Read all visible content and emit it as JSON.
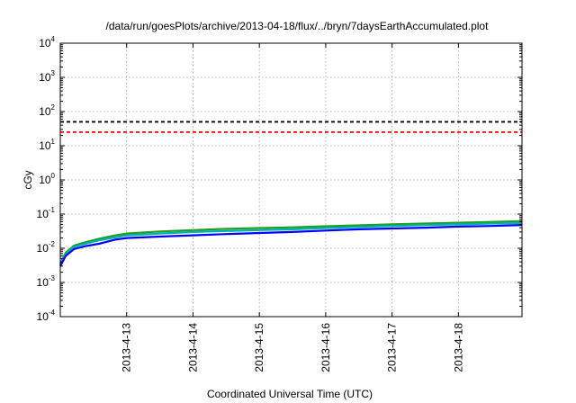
{
  "chart_data": {
    "type": "line",
    "title": "/data/run/goesPlots/archive/2013-04-18/flux/../bryn/7daysEarthAccumulated.plot",
    "xlabel": "Coordinated Universal Time (UTC)",
    "ylabel": "cGy",
    "xlim": [
      "2013-04-12",
      "2013-04-18T23:00"
    ],
    "ylim": [
      0.0001,
      10000
    ],
    "yscale": "log",
    "grid": true,
    "x_ticks": [
      "2013-4-13",
      "2013-4-14",
      "2013-4-15",
      "2013-4-16",
      "2013-4-17",
      "2013-4-18"
    ],
    "x_tick_dates": [
      "2013-04-13",
      "2013-04-14",
      "2013-04-15",
      "2013-04-16",
      "2013-04-17",
      "2013-04-18"
    ],
    "y_ticks": [
      {
        "base": "10",
        "exp": "4",
        "value": 10000
      },
      {
        "base": "10",
        "exp": "3",
        "value": 1000
      },
      {
        "base": "10",
        "exp": "2",
        "value": 100
      },
      {
        "base": "10",
        "exp": "1",
        "value": 10
      },
      {
        "base": "10",
        "exp": "0",
        "value": 1
      },
      {
        "base": "10",
        "exp": "-1",
        "value": 0.1
      },
      {
        "base": "10",
        "exp": "-2",
        "value": 0.01
      },
      {
        "base": "10",
        "exp": "-3",
        "value": 0.001
      },
      {
        "base": "10",
        "exp": "-4",
        "value": 0.0001
      }
    ],
    "thresholds": [
      {
        "value": 50,
        "color": "#000000"
      },
      {
        "value": 25,
        "color": "#ff0000"
      }
    ],
    "x": [
      "2013-04-12T00:00",
      "2013-04-12T02:00",
      "2013-04-12T05:00",
      "2013-04-12T09:00",
      "2013-04-12T14:00",
      "2013-04-12T20:00",
      "2013-04-13T00:00",
      "2013-04-13T12:00",
      "2013-04-14T00:00",
      "2013-04-14T12:00",
      "2013-04-15T00:00",
      "2013-04-15T12:00",
      "2013-04-16T00:00",
      "2013-04-16T12:00",
      "2013-04-17T00:00",
      "2013-04-17T12:00",
      "2013-04-18T00:00",
      "2013-04-18T12:00",
      "2013-04-18T23:00"
    ],
    "series": [
      {
        "color": "#1f9e1f",
        "values": [
          0.0035,
          0.0075,
          0.012,
          0.015,
          0.019,
          0.024,
          0.027,
          0.031,
          0.034,
          0.037,
          0.039,
          0.041,
          0.044,
          0.047,
          0.05,
          0.053,
          0.056,
          0.059,
          0.062
        ]
      },
      {
        "color": "#00b0b0",
        "values": [
          0.0032,
          0.0068,
          0.011,
          0.0135,
          0.017,
          0.021,
          0.024,
          0.027,
          0.03,
          0.032,
          0.034,
          0.036,
          0.039,
          0.042,
          0.045,
          0.048,
          0.05,
          0.053,
          0.055
        ]
      },
      {
        "color": "#0000ff",
        "values": [
          0.003,
          0.006,
          0.0095,
          0.0115,
          0.0135,
          0.018,
          0.02,
          0.022,
          0.024,
          0.026,
          0.028,
          0.03,
          0.033,
          0.036,
          0.038,
          0.04,
          0.043,
          0.045,
          0.048
        ]
      }
    ]
  }
}
